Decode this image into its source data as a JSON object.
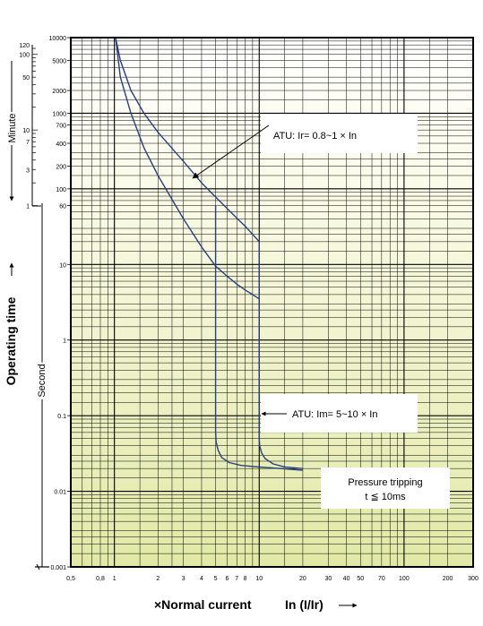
{
  "chart_data": {
    "type": "line",
    "title": "",
    "xscale": "log",
    "yscale": "log",
    "xlim": [
      0.5,
      300
    ],
    "ylim": [
      0.001,
      10000
    ],
    "grid": true,
    "background": "gradient: white (top) to pale yellow-green (bottom)",
    "x_ticks": [
      "0,5",
      "0,8",
      "1",
      "2",
      "3",
      "4",
      "5",
      "6",
      "7",
      "8",
      "10",
      "20",
      "30",
      "40",
      "50",
      "70",
      "100",
      "200",
      "300"
    ],
    "y_ticks_second": [
      "10000",
      "5000",
      "2000",
      "1000",
      "700",
      "400",
      "200",
      "100",
      "60",
      "10",
      "1",
      "0.1",
      "0.01",
      "0.001"
    ],
    "y_ticks_minute": [
      "120",
      "100",
      "50",
      "10",
      "7",
      "3",
      "1"
    ],
    "xlabel_main": "×Normal current",
    "xlabel_unit": "In (I/Ir)",
    "ylabel_main": "Operating time",
    "ylabel_second": "Second",
    "ylabel_minute": "Minute",
    "series": [
      {
        "x": [
          1.02,
          1.1,
          1.3,
          1.6,
          2,
          3,
          4,
          5,
          6,
          7,
          8,
          9,
          10
        ],
        "y": [
          10000,
          5000,
          2000,
          1000,
          560,
          230,
          120,
          78,
          55,
          41,
          32,
          25,
          20
        ]
      },
      {
        "x": [
          1.02,
          1.1,
          1.3,
          1.6,
          2,
          3,
          4,
          5,
          6,
          7,
          8,
          9,
          10
        ],
        "y": [
          10000,
          3000,
          1000,
          350,
          150,
          40,
          17,
          9.5,
          7,
          5.5,
          4.6,
          4.0,
          3.5
        ]
      },
      {
        "x": [
          5,
          5,
          5.04,
          5.2,
          5.5,
          6.2,
          7.5,
          10,
          20
        ],
        "y": [
          60,
          0.06,
          0.045,
          0.035,
          0.028,
          0.024,
          0.022,
          0.021,
          0.019
        ]
      },
      {
        "x": [
          10,
          10,
          10.08,
          10.4,
          11,
          12.5,
          15,
          20
        ],
        "y": [
          20,
          0.05,
          0.04,
          0.032,
          0.027,
          0.023,
          0.021,
          0.02
        ]
      }
    ],
    "annotations": [
      {
        "text": "ATU: Ir= 0.8~1 × In"
      },
      {
        "text": "ATU: Im= 5~10 × In"
      },
      {
        "text": "Pressure tripping"
      },
      {
        "text": "t ≦ 10ms"
      }
    ]
  }
}
